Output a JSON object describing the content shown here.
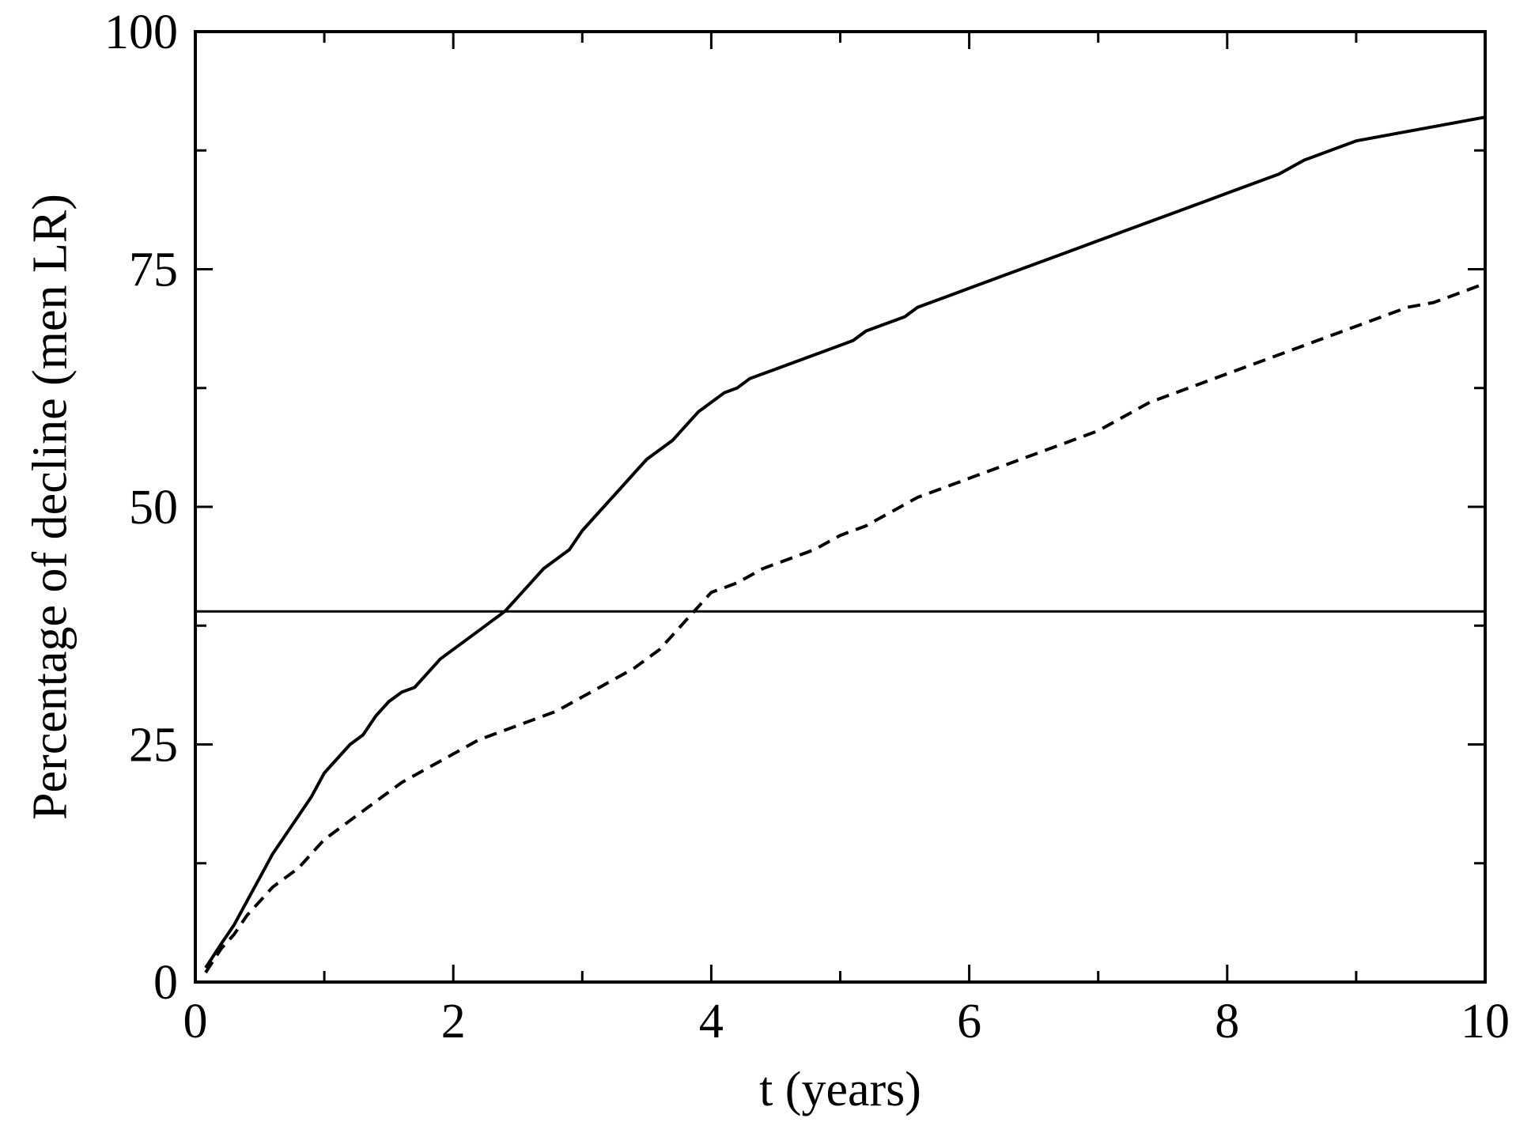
{
  "chart_data": {
    "type": "line",
    "xlabel": "t (years)",
    "ylabel": "Percentage of decline (men LR)",
    "xlim": [
      0,
      10
    ],
    "ylim": [
      0,
      100
    ],
    "xticks": [
      0,
      2,
      4,
      6,
      8,
      10
    ],
    "yticks": [
      0,
      25,
      50,
      75,
      100
    ],
    "x_minor_step": 1,
    "y_minor_step": 12.5,
    "grid": false,
    "legend": "none",
    "reference_line": {
      "y": 39
    },
    "series": [
      {
        "style": "solid",
        "color": "#000000",
        "x": [
          0.08,
          0.2,
          0.3,
          0.4,
          0.5,
          0.6,
          0.7,
          0.8,
          0.9,
          1.0,
          1.1,
          1.2,
          1.3,
          1.4,
          1.5,
          1.6,
          1.7,
          1.8,
          1.9,
          2.0,
          2.1,
          2.2,
          2.3,
          2.4,
          2.5,
          2.6,
          2.7,
          2.8,
          2.9,
          3.0,
          3.1,
          3.2,
          3.3,
          3.4,
          3.5,
          3.6,
          3.7,
          3.8,
          3.9,
          4.0,
          4.1,
          4.2,
          4.3,
          4.4,
          4.5,
          4.6,
          4.7,
          4.8,
          4.9,
          5.0,
          5.1,
          5.2,
          5.3,
          5.4,
          5.5,
          5.6,
          5.7,
          5.8,
          5.9,
          6.0,
          6.2,
          6.4,
          6.6,
          6.8,
          7.0,
          7.2,
          7.4,
          7.6,
          7.8,
          8.0,
          8.2,
          8.4,
          8.6,
          8.8,
          9.0,
          9.2,
          9.4,
          9.6,
          9.8,
          10.0
        ],
        "y": [
          1.5,
          4.0,
          6.0,
          8.5,
          11.0,
          13.5,
          15.5,
          17.5,
          19.5,
          22.0,
          23.5,
          25.0,
          26.0,
          28.0,
          29.5,
          30.5,
          31.0,
          32.5,
          34.0,
          35.0,
          36.0,
          37.0,
          38.0,
          39.0,
          40.5,
          42.0,
          43.5,
          44.5,
          45.5,
          47.5,
          49.0,
          50.5,
          52.0,
          53.5,
          55.0,
          56.0,
          57.0,
          58.5,
          60.0,
          61.0,
          62.0,
          62.5,
          63.5,
          64.0,
          64.5,
          65.0,
          65.5,
          66.0,
          66.5,
          67.0,
          67.5,
          68.5,
          69.0,
          69.5,
          70.0,
          71.0,
          71.5,
          72.0,
          72.5,
          73.0,
          74.0,
          75.0,
          76.0,
          77.0,
          78.0,
          79.0,
          80.0,
          81.0,
          82.0,
          83.0,
          84.0,
          85.0,
          86.5,
          87.5,
          88.5,
          89.0,
          89.5,
          90.0,
          90.5,
          91.0
        ]
      },
      {
        "style": "dashed",
        "color": "#000000",
        "x": [
          0.08,
          0.2,
          0.3,
          0.4,
          0.5,
          0.6,
          0.7,
          0.8,
          0.9,
          1.0,
          1.2,
          1.4,
          1.6,
          1.8,
          2.0,
          2.2,
          2.4,
          2.6,
          2.8,
          3.0,
          3.2,
          3.4,
          3.6,
          3.8,
          4.0,
          4.2,
          4.4,
          4.6,
          4.8,
          5.0,
          5.2,
          5.4,
          5.6,
          5.8,
          6.0,
          6.2,
          6.4,
          6.6,
          6.8,
          7.0,
          7.2,
          7.4,
          7.6,
          7.8,
          8.0,
          8.2,
          8.4,
          8.6,
          8.8,
          9.0,
          9.2,
          9.4,
          9.6,
          9.8,
          10.0
        ],
        "y": [
          1.0,
          3.5,
          5.0,
          7.0,
          8.5,
          10.0,
          11.0,
          12.0,
          13.5,
          15.0,
          17.0,
          19.0,
          21.0,
          22.5,
          24.0,
          25.5,
          26.5,
          27.5,
          28.5,
          30.0,
          31.5,
          33.0,
          35.0,
          38.0,
          41.0,
          42.0,
          43.5,
          44.5,
          45.5,
          47.0,
          48.0,
          49.5,
          51.0,
          52.0,
          53.0,
          54.0,
          55.0,
          56.0,
          57.0,
          58.0,
          59.5,
          61.0,
          62.0,
          63.0,
          64.0,
          65.0,
          66.0,
          67.0,
          68.0,
          69.0,
          70.0,
          71.0,
          71.5,
          72.5,
          73.5
        ]
      }
    ]
  }
}
